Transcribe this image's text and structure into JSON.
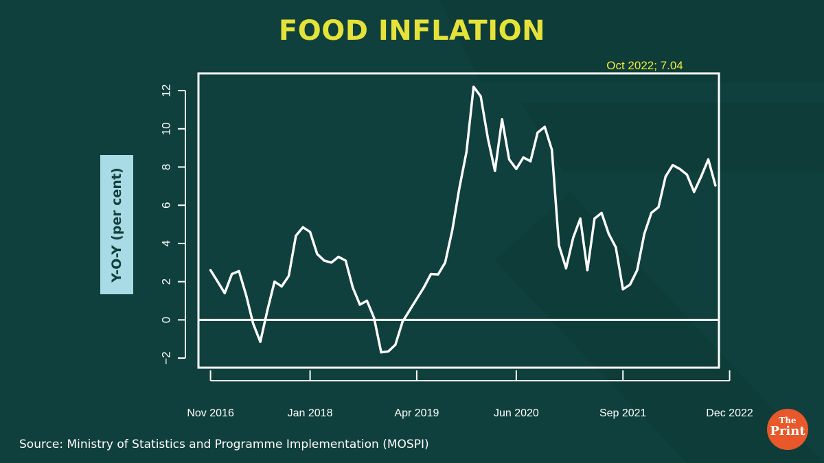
{
  "header": {
    "title": "FOOD INFLATION"
  },
  "axis_label": "Y-O-Y (per cent)",
  "source": "Source: Ministry of Statistics and Programme Implementation (MOSPI)",
  "logo": {
    "top": "The",
    "bottom": "Print"
  },
  "colors": {
    "background": "#10403d",
    "title": "#e5e339",
    "line": "#ffffff",
    "annotation": "#f0ee3a",
    "ylabel_bg": "#a9dbe6"
  },
  "chart_data": {
    "type": "line",
    "title": "FOOD INFLATION",
    "xlabel": "",
    "ylabel": "Y-O-Y (per cent)",
    "ylim": [
      -2.5,
      12.9
    ],
    "xlim": [
      -1.7,
      71.5
    ],
    "yticks": [
      -2,
      0,
      2,
      4,
      6,
      8,
      10,
      12
    ],
    "xticks": [
      {
        "label": "Nov 2016",
        "index": 0
      },
      {
        "label": "Jan 2018",
        "index": 14
      },
      {
        "label": "Apr 2019",
        "index": 29
      },
      {
        "label": "Jun 2020",
        "index": 43
      },
      {
        "label": "Sep 2021",
        "index": 58
      },
      {
        "label": "Dec 2022",
        "index": 73
      }
    ],
    "reference_line": 0,
    "annotation": "Oct 2022; 7.04",
    "series": [
      {
        "name": "Food inflation (Y-O-Y %)",
        "start": "Nov 2016",
        "values": [
          2.6,
          2.0,
          1.4,
          2.4,
          2.55,
          1.3,
          -0.2,
          -1.15,
          0.5,
          2.0,
          1.75,
          2.3,
          4.4,
          4.85,
          4.6,
          3.45,
          3.1,
          3.0,
          3.3,
          3.1,
          1.7,
          0.8,
          1.0,
          0.1,
          -1.7,
          -1.65,
          -1.3,
          -0.1,
          0.5,
          1.1,
          1.7,
          2.4,
          2.38,
          3.0,
          4.7,
          6.9,
          8.8,
          12.2,
          11.7,
          9.5,
          7.8,
          10.5,
          8.4,
          7.9,
          8.5,
          8.3,
          9.8,
          10.1,
          8.9,
          3.9,
          2.7,
          4.3,
          5.3,
          2.6,
          5.3,
          5.6,
          4.5,
          3.8,
          1.6,
          1.85,
          2.6,
          4.5,
          5.6,
          5.9,
          7.5,
          8.1,
          7.9,
          7.6,
          6.7,
          7.5,
          8.4,
          7.04
        ]
      }
    ]
  }
}
